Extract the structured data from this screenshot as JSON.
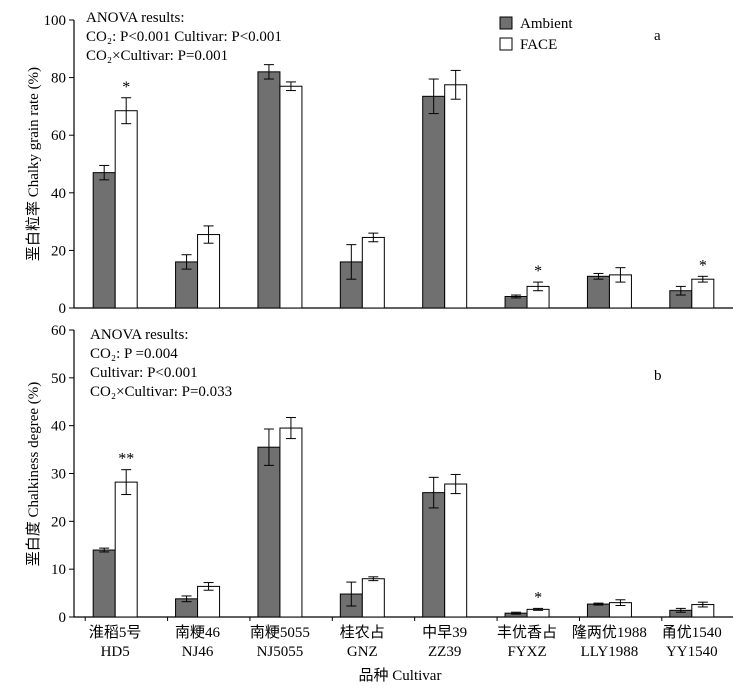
{
  "colors": {
    "ambient": "#707070",
    "face": "#ffffff",
    "stroke": "#000000"
  },
  "x_title": "品种 Cultivar",
  "categories": [
    {
      "zh": "淮稻5号",
      "en": "HD5"
    },
    {
      "zh": "南粳46",
      "en": "NJ46"
    },
    {
      "zh": "南粳5055",
      "en": "NJ5055"
    },
    {
      "zh": "桂农占",
      "en": "GNZ"
    },
    {
      "zh": "中早39",
      "en": "ZZ39"
    },
    {
      "zh": "丰优香占",
      "en": "FYXZ"
    },
    {
      "zh": "隆两优1988",
      "en": "LLY1988"
    },
    {
      "zh": "甬优1540",
      "en": "YY1540"
    }
  ],
  "legend": {
    "ambient": "Ambient",
    "face": "FACE"
  },
  "chart_data": [
    {
      "type": "bar",
      "panel": "a",
      "ylabel": "垩白粒率 Chalky grain rate (%)",
      "ylim": [
        0,
        100
      ],
      "yticks": [
        0,
        20,
        40,
        60,
        80,
        100
      ],
      "categories": [
        "HD5",
        "NJ46",
        "NJ5055",
        "GNZ",
        "ZZ39",
        "FYXZ",
        "LLY1988",
        "YY1540"
      ],
      "series": [
        {
          "name": "Ambient",
          "values": [
            47,
            16,
            82,
            16,
            73.5,
            4,
            11,
            6
          ],
          "errors": [
            2.5,
            2.5,
            2.5,
            6,
            6,
            0.5,
            1,
            1.5
          ]
        },
        {
          "name": "FACE",
          "values": [
            68.5,
            25.5,
            77,
            24.5,
            77.5,
            7.5,
            11.5,
            10
          ],
          "errors": [
            4.5,
            3,
            1.5,
            1.5,
            5,
            1.5,
            2.5,
            1
          ]
        }
      ],
      "significance": [
        "*",
        "",
        "",
        "",
        "",
        "*",
        "",
        "*"
      ],
      "annotations": [
        "ANOVA results:",
        "CO₂: P<0.001     Cultivar: P<0.001",
        "CO₂×Cultivar: P=0.001"
      ]
    },
    {
      "type": "bar",
      "panel": "b",
      "ylabel": "垩白度 Chalkiness degree (%)",
      "ylim": [
        0,
        60
      ],
      "yticks": [
        0,
        10,
        20,
        30,
        40,
        50,
        60
      ],
      "categories": [
        "HD5",
        "NJ46",
        "NJ5055",
        "GNZ",
        "ZZ39",
        "FYXZ",
        "LLY1988",
        "YY1540"
      ],
      "series": [
        {
          "name": "Ambient",
          "values": [
            14,
            3.8,
            35.5,
            4.8,
            26,
            0.8,
            2.7,
            1.4
          ],
          "errors": [
            0.4,
            0.6,
            3.8,
            2.5,
            3.2,
            0.2,
            0.2,
            0.4
          ]
        },
        {
          "name": "FACE",
          "values": [
            28.2,
            6.4,
            39.5,
            8,
            27.8,
            1.6,
            3,
            2.6
          ],
          "errors": [
            2.6,
            0.8,
            2.2,
            0.4,
            2,
            0.2,
            0.6,
            0.5
          ]
        }
      ],
      "significance": [
        "**",
        "",
        "",
        "",
        "",
        "*",
        "",
        ""
      ],
      "annotations": [
        "ANOVA results:",
        "CO₂: P =0.004",
        "Cultivar: P<0.001",
        "CO₂×Cultivar: P=0.033"
      ]
    }
  ]
}
